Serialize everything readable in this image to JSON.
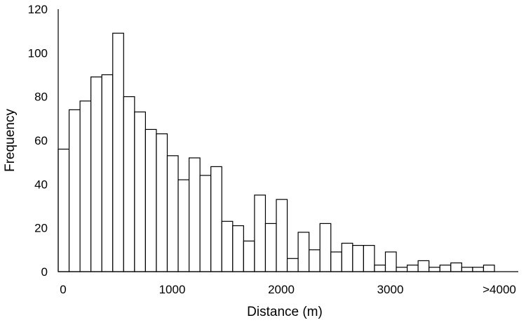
{
  "chart_data": {
    "type": "bar",
    "xlabel": "Distance (m)",
    "ylabel": "Frequency",
    "ylim": [
      0,
      120
    ],
    "y_ticks": [
      0,
      20,
      40,
      60,
      80,
      100,
      120
    ],
    "x_tick_labels": [
      {
        "label": "0",
        "at_bin": 0
      },
      {
        "label": "1000",
        "at_bin": 10
      },
      {
        "label": "2000",
        "at_bin": 20
      },
      {
        "label": "3000",
        "at_bin": 30
      },
      {
        "label": ">4000",
        "at_bin": 40
      }
    ],
    "bin_width": 100,
    "values": [
      56,
      74,
      78,
      89,
      90,
      109,
      80,
      73,
      65,
      63,
      53,
      42,
      52,
      44,
      48,
      23,
      21,
      14,
      35,
      22,
      33,
      6,
      18,
      10,
      22,
      9,
      13,
      12,
      12,
      3,
      9,
      2,
      3,
      5,
      2,
      3,
      4,
      2,
      2,
      3
    ],
    "grid": false,
    "legend": "none"
  }
}
